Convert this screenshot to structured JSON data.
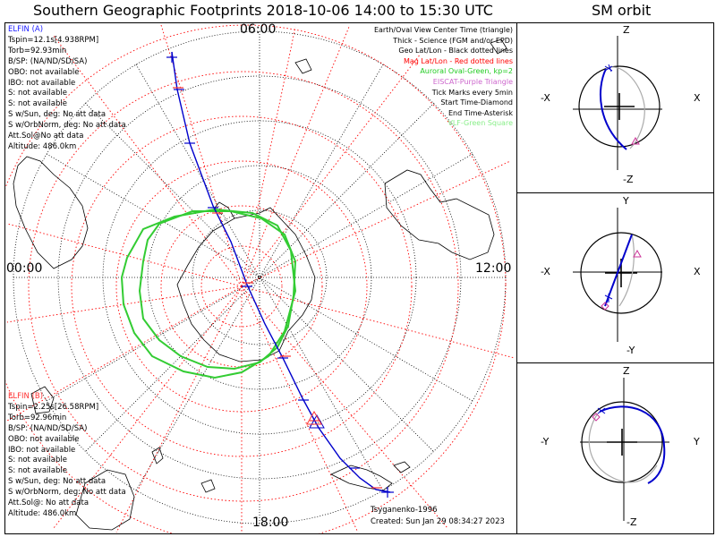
{
  "title": "Southern Geographic Footprints 2018-10-06 14:00 to 15:30 UTC",
  "orbit_title": "SM orbit",
  "clock": {
    "top": "06:00",
    "left": "00:00",
    "right": "12:00",
    "bottom": "18:00"
  },
  "elfin_a": {
    "name": "ELFIN (A)",
    "color": "#1a1aff",
    "lines": [
      "Tspin=12.1s[4.938RPM]",
      "Torb=92.93min",
      "B/SP: (NA/ND/SD/SA)",
      "OBO: not available",
      "IBO: not available",
      "S: not available",
      "S: not available",
      "S w/Sun, deg: No att data",
      "S w/OrbNorm, deg: No att data",
      "Att.Sol@No att data",
      "Altitude: 486.0km"
    ]
  },
  "elfin_b": {
    "name": "ELFIN (B)",
    "color": "#ff3333",
    "lines": [
      "Tspin=2.25s[26.58RPM]",
      "Torb=92.96min",
      "B/SP: (NA/ND/SD/SA)",
      "OBO: not available",
      "IBO: not available",
      "S: not available",
      "S: not available",
      "S w/Sun, deg: No att data",
      "S w/OrbNorm, deg: No att data",
      "Att.Sol@: No att data",
      "Altitude: 486.0km"
    ]
  },
  "legend": [
    {
      "text": "Earth/Oval View Center Time (triangle)",
      "color": "#000000"
    },
    {
      "text": "Thick - Science (FGM and/or EPD)",
      "color": "#000000"
    },
    {
      "text": "Geo Lat/Lon - Black dotted lines",
      "color": "#000000"
    },
    {
      "text": "Mag Lat/Lon - Red dotted lines",
      "color": "#ff0000"
    },
    {
      "text": "Auroral Oval-Green, kp=2",
      "color": "#22cc22"
    },
    {
      "text": "EISCAT-Purple Triangle",
      "color": "#cc66cc"
    },
    {
      "text": "Tick Marks every 5min",
      "color": "#000000"
    },
    {
      "text": "Start Time-Diamond",
      "color": "#000000"
    },
    {
      "text": "End Time-Asterisk",
      "color": "#000000"
    },
    {
      "text": "VLF-Green Square",
      "color": "#88ee88"
    }
  ],
  "footer": {
    "model": "Tsyganenko-1996",
    "created": "Created: Sun Jan 29 08:34:27 2023"
  },
  "panels": [
    {
      "top": "Z",
      "bottom": "-Z",
      "left": "-X",
      "right": "X"
    },
    {
      "top": "Y",
      "bottom": "-Y",
      "left": "-X",
      "right": "X"
    },
    {
      "top": "Z",
      "bottom": "-Z",
      "left": "-Y",
      "right": "Y"
    }
  ],
  "colors": {
    "orbit": "#0000cc",
    "oval": "#33cc33",
    "mag_grid": "#ff0000",
    "geo_grid": "#000000"
  }
}
